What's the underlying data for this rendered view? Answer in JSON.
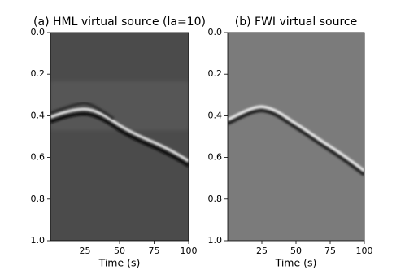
{
  "chart_data": [
    {
      "type": "image",
      "title": "(a) HML virtual source (la=10)",
      "xlabel": "Time (s)",
      "xlim": [
        0,
        100
      ],
      "xticks": [
        25,
        50,
        75,
        100
      ],
      "ylim": [
        0,
        1
      ],
      "yticks": [
        {
          "value": 0,
          "label": "0.0"
        },
        0.2,
        0.4,
        0.6,
        0.8,
        {
          "value": 1,
          "label": "1.0"
        }
      ],
      "y_inverted": true
    },
    {
      "type": "image",
      "title": "(b) FWI virtual source",
      "xlabel": "Time (s)",
      "xlim": [
        0,
        100
      ],
      "xticks": [
        25,
        50,
        75,
        100
      ],
      "ylim": [
        0,
        1
      ],
      "yticks": [
        {
          "value": 0,
          "label": "0.0"
        },
        0.2,
        0.4,
        0.6,
        0.8,
        {
          "value": 1,
          "label": "1.0"
        }
      ],
      "y_inverted": true
    }
  ]
}
